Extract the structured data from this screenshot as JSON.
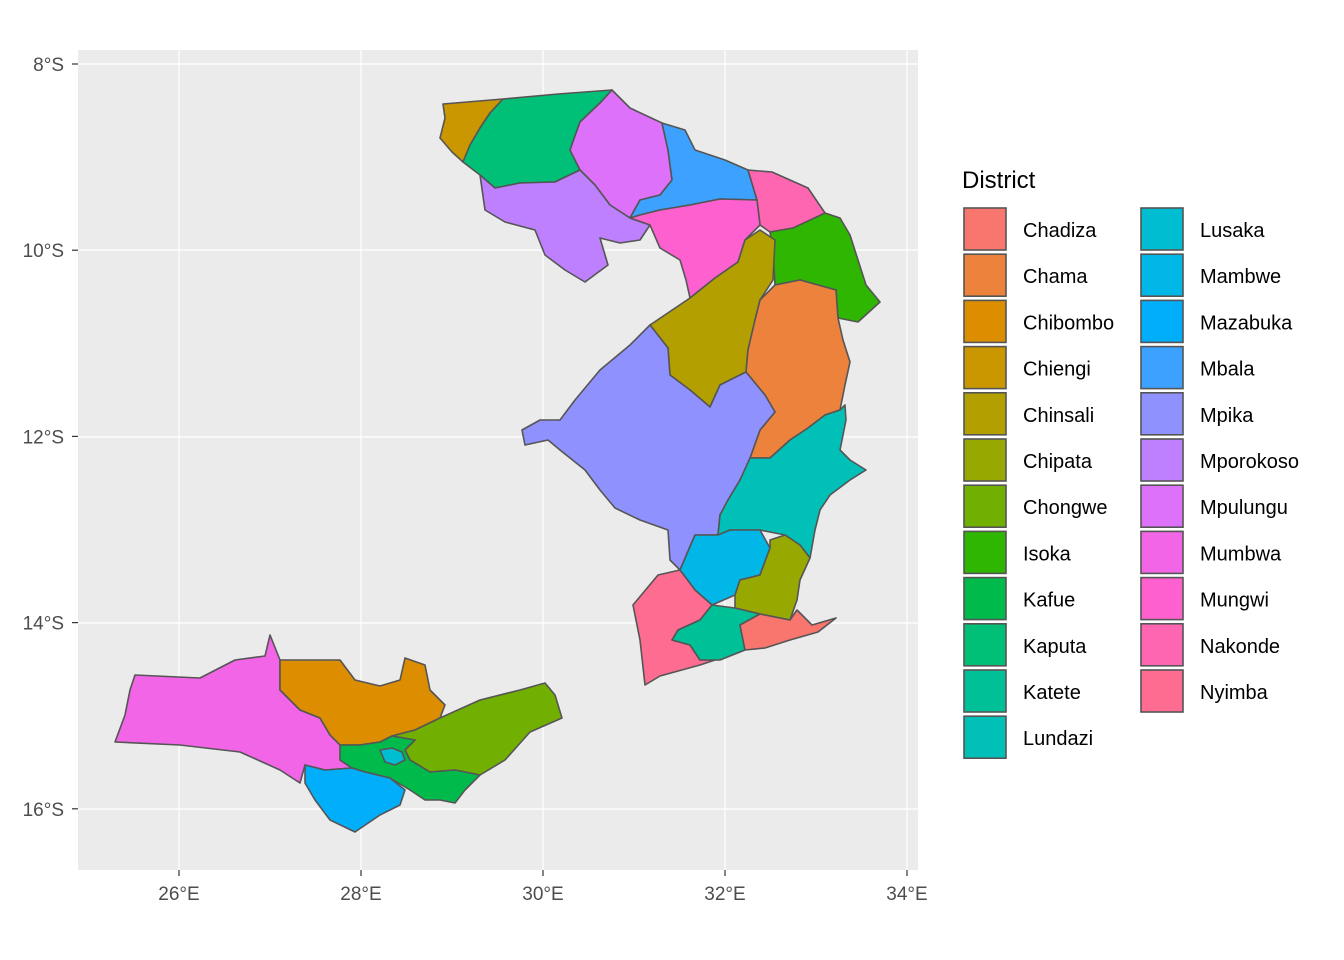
{
  "map": {
    "legend_title": "District",
    "panel_color": "#EBEBEB",
    "grid_color": "#FFFFFF",
    "x_ticks": [
      {
        "lon": 26,
        "label": "26°E"
      },
      {
        "lon": 28,
        "label": "28°E"
      },
      {
        "lon": 30,
        "label": "30°E"
      },
      {
        "lon": 32,
        "label": "32°E"
      },
      {
        "lon": 34,
        "label": "34°E"
      }
    ],
    "y_ticks": [
      {
        "lat": -8,
        "label": "8°S"
      },
      {
        "lat": -10,
        "label": "10°S"
      },
      {
        "lat": -12,
        "label": "12°S"
      },
      {
        "lat": -14,
        "label": "14°S"
      },
      {
        "lat": -16,
        "label": "16°S"
      }
    ],
    "xlim": [
      24.9,
      34.1
    ],
    "ylim": [
      -16.65,
      -7.85
    ],
    "districts": [
      {
        "name": "Chadiza",
        "color": "#F8766D"
      },
      {
        "name": "Chama",
        "color": "#EC823C"
      },
      {
        "name": "Chibombo",
        "color": "#DD8D00"
      },
      {
        "name": "Chiengi",
        "color": "#CA9700"
      },
      {
        "name": "Chinsali",
        "color": "#B3A000"
      },
      {
        "name": "Chipata",
        "color": "#97A900"
      },
      {
        "name": "Chongwe",
        "color": "#71B000"
      },
      {
        "name": "Isoka",
        "color": "#2FB600"
      },
      {
        "name": "Kafue",
        "color": "#00BB4B"
      },
      {
        "name": "Kaputa",
        "color": "#00BF76"
      },
      {
        "name": "Katete",
        "color": "#00C098"
      },
      {
        "name": "Lundazi",
        "color": "#00C0B7"
      },
      {
        "name": "Lusaka",
        "color": "#00BDD1"
      },
      {
        "name": "Mambwe",
        "color": "#00B7E8"
      },
      {
        "name": "Mazabuka",
        "color": "#00AEFA"
      },
      {
        "name": "Mbala",
        "color": "#3DA1FF"
      },
      {
        "name": "Mpika",
        "color": "#8F91FF"
      },
      {
        "name": "Mporokoso",
        "color": "#BE80FF"
      },
      {
        "name": "Mpulungu",
        "color": "#DE71F9"
      },
      {
        "name": "Mumbwa",
        "color": "#F265E7"
      },
      {
        "name": "Mungwi",
        "color": "#FE61CF"
      },
      {
        "name": "Nakonde",
        "color": "#FF66B2"
      },
      {
        "name": "Nyimba",
        "color": "#FF6C91"
      }
    ]
  }
}
